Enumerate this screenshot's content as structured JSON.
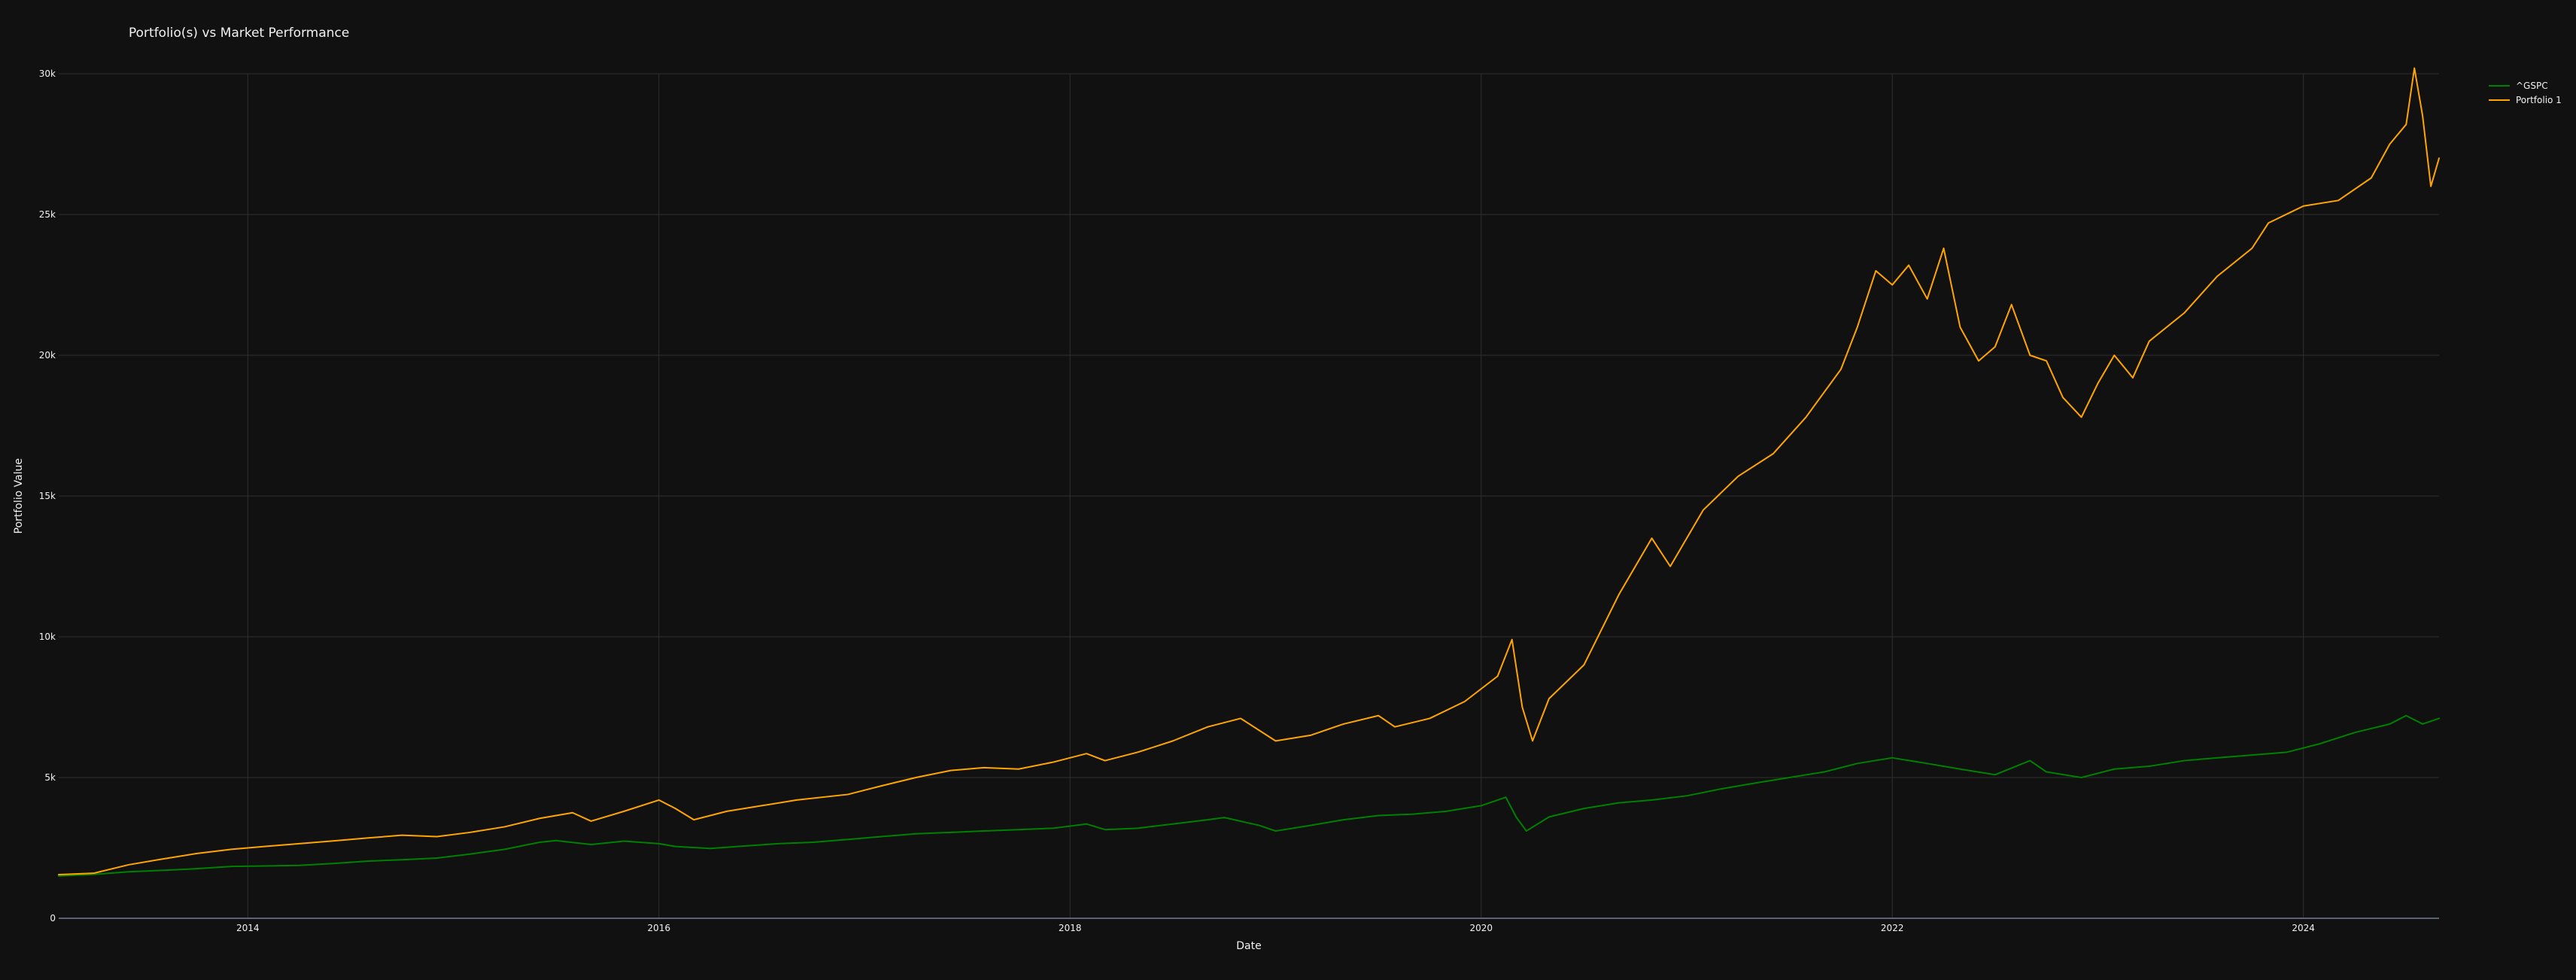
{
  "chart_data": {
    "type": "line",
    "title": "Portfolio(s) vs Market Performance",
    "xlabel": "Date",
    "ylabel": "Portfolio Value",
    "x_ticks": [
      "2014",
      "2016",
      "2018",
      "2020",
      "2022",
      "2024"
    ],
    "y_ticks": [
      "0",
      "5k",
      "10k",
      "15k",
      "20k",
      "25k",
      "30k"
    ],
    "x_range": [
      2013.08,
      2024.66
    ],
    "y_range": [
      0,
      30000
    ],
    "grid": true,
    "legend_position": "top-right",
    "series": [
      {
        "name": "^GSPC",
        "color": "#008000",
        "points": [
          [
            2013.08,
            1500
          ],
          [
            2013.25,
            1560
          ],
          [
            2013.42,
            1650
          ],
          [
            2013.58,
            1700
          ],
          [
            2013.75,
            1760
          ],
          [
            2013.92,
            1840
          ],
          [
            2014.08,
            1860
          ],
          [
            2014.25,
            1880
          ],
          [
            2014.42,
            1950
          ],
          [
            2014.58,
            2030
          ],
          [
            2014.75,
            2080
          ],
          [
            2014.92,
            2140
          ],
          [
            2015.08,
            2280
          ],
          [
            2015.25,
            2450
          ],
          [
            2015.42,
            2700
          ],
          [
            2015.5,
            2760
          ],
          [
            2015.67,
            2620
          ],
          [
            2015.83,
            2740
          ],
          [
            2016.0,
            2650
          ],
          [
            2016.08,
            2550
          ],
          [
            2016.25,
            2480
          ],
          [
            2016.42,
            2570
          ],
          [
            2016.58,
            2650
          ],
          [
            2016.75,
            2700
          ],
          [
            2016.92,
            2800
          ],
          [
            2017.08,
            2900
          ],
          [
            2017.25,
            3000
          ],
          [
            2017.42,
            3050
          ],
          [
            2017.58,
            3100
          ],
          [
            2017.75,
            3150
          ],
          [
            2017.92,
            3200
          ],
          [
            2018.08,
            3350
          ],
          [
            2018.17,
            3150
          ],
          [
            2018.33,
            3200
          ],
          [
            2018.5,
            3350
          ],
          [
            2018.67,
            3500
          ],
          [
            2018.75,
            3580
          ],
          [
            2018.92,
            3300
          ],
          [
            2019.0,
            3100
          ],
          [
            2019.17,
            3300
          ],
          [
            2019.33,
            3500
          ],
          [
            2019.5,
            3650
          ],
          [
            2019.67,
            3700
          ],
          [
            2019.83,
            3800
          ],
          [
            2020.0,
            4000
          ],
          [
            2020.12,
            4300
          ],
          [
            2020.17,
            3600
          ],
          [
            2020.22,
            3100
          ],
          [
            2020.33,
            3600
          ],
          [
            2020.5,
            3900
          ],
          [
            2020.67,
            4100
          ],
          [
            2020.83,
            4200
          ],
          [
            2021.0,
            4350
          ],
          [
            2021.17,
            4600
          ],
          [
            2021.33,
            4800
          ],
          [
            2021.5,
            5000
          ],
          [
            2021.67,
            5200
          ],
          [
            2021.83,
            5500
          ],
          [
            2022.0,
            5700
          ],
          [
            2022.17,
            5500
          ],
          [
            2022.33,
            5300
          ],
          [
            2022.5,
            5100
          ],
          [
            2022.67,
            5600
          ],
          [
            2022.75,
            5200
          ],
          [
            2022.92,
            5000
          ],
          [
            2023.08,
            5300
          ],
          [
            2023.25,
            5400
          ],
          [
            2023.42,
            5600
          ],
          [
            2023.58,
            5700
          ],
          [
            2023.75,
            5800
          ],
          [
            2023.92,
            5900
          ],
          [
            2024.08,
            6200
          ],
          [
            2024.25,
            6600
          ],
          [
            2024.42,
            6900
          ],
          [
            2024.5,
            7200
          ],
          [
            2024.58,
            6900
          ],
          [
            2024.66,
            7100
          ]
        ]
      },
      {
        "name": "Portfolio 1",
        "color": "#ffa500",
        "points": [
          [
            2013.08,
            1550
          ],
          [
            2013.25,
            1600
          ],
          [
            2013.42,
            1900
          ],
          [
            2013.58,
            2100
          ],
          [
            2013.75,
            2300
          ],
          [
            2013.92,
            2450
          ],
          [
            2014.08,
            2550
          ],
          [
            2014.25,
            2650
          ],
          [
            2014.42,
            2750
          ],
          [
            2014.58,
            2850
          ],
          [
            2014.75,
            2950
          ],
          [
            2014.92,
            2900
          ],
          [
            2015.08,
            3050
          ],
          [
            2015.25,
            3250
          ],
          [
            2015.42,
            3550
          ],
          [
            2015.58,
            3750
          ],
          [
            2015.67,
            3450
          ],
          [
            2015.83,
            3800
          ],
          [
            2016.0,
            4200
          ],
          [
            2016.08,
            3900
          ],
          [
            2016.17,
            3500
          ],
          [
            2016.33,
            3800
          ],
          [
            2016.5,
            4000
          ],
          [
            2016.67,
            4200
          ],
          [
            2016.92,
            4400
          ],
          [
            2017.08,
            4700
          ],
          [
            2017.25,
            5000
          ],
          [
            2017.42,
            5250
          ],
          [
            2017.58,
            5350
          ],
          [
            2017.75,
            5300
          ],
          [
            2017.92,
            5550
          ],
          [
            2018.08,
            5850
          ],
          [
            2018.17,
            5600
          ],
          [
            2018.33,
            5900
          ],
          [
            2018.5,
            6300
          ],
          [
            2018.67,
            6800
          ],
          [
            2018.83,
            7100
          ],
          [
            2019.0,
            6300
          ],
          [
            2019.17,
            6500
          ],
          [
            2019.33,
            6900
          ],
          [
            2019.5,
            7200
          ],
          [
            2019.58,
            6800
          ],
          [
            2019.75,
            7100
          ],
          [
            2019.92,
            7700
          ],
          [
            2020.08,
            8600
          ],
          [
            2020.15,
            9900
          ],
          [
            2020.2,
            7500
          ],
          [
            2020.25,
            6300
          ],
          [
            2020.33,
            7800
          ],
          [
            2020.5,
            9000
          ],
          [
            2020.67,
            11500
          ],
          [
            2020.83,
            13500
          ],
          [
            2020.92,
            12500
          ],
          [
            2021.08,
            14500
          ],
          [
            2021.25,
            15700
          ],
          [
            2021.42,
            16500
          ],
          [
            2021.58,
            17800
          ],
          [
            2021.75,
            19500
          ],
          [
            2021.83,
            21000
          ],
          [
            2021.92,
            23000
          ],
          [
            2022.0,
            22500
          ],
          [
            2022.08,
            23200
          ],
          [
            2022.17,
            22000
          ],
          [
            2022.25,
            23800
          ],
          [
            2022.33,
            21000
          ],
          [
            2022.42,
            19800
          ],
          [
            2022.5,
            20300
          ],
          [
            2022.58,
            21800
          ],
          [
            2022.67,
            20000
          ],
          [
            2022.75,
            19800
          ],
          [
            2022.83,
            18500
          ],
          [
            2022.92,
            17800
          ],
          [
            2023.0,
            19000
          ],
          [
            2023.08,
            20000
          ],
          [
            2023.17,
            19200
          ],
          [
            2023.25,
            20500
          ],
          [
            2023.42,
            21500
          ],
          [
            2023.58,
            22800
          ],
          [
            2023.75,
            23800
          ],
          [
            2023.83,
            24700
          ],
          [
            2024.0,
            25300
          ],
          [
            2024.17,
            25500
          ],
          [
            2024.33,
            26300
          ],
          [
            2024.42,
            27500
          ],
          [
            2024.5,
            28200
          ],
          [
            2024.54,
            30200
          ],
          [
            2024.58,
            28500
          ],
          [
            2024.62,
            26000
          ],
          [
            2024.66,
            27000
          ]
        ]
      }
    ]
  }
}
